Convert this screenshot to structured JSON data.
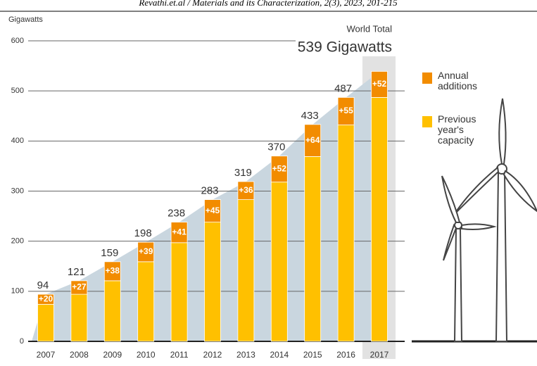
{
  "chart_data": {
    "type": "stacked_bar",
    "source": "Revathi.et.al / Materials and its Characterization, 2(3), 2023, 201-215",
    "y_label": "Gigawatts",
    "annotation": {
      "title": "World Total",
      "text": "539 Gigawatts"
    },
    "categories": [
      "2007",
      "2008",
      "2009",
      "2010",
      "2011",
      "2012",
      "2013",
      "2014",
      "2015",
      "2016",
      "2017"
    ],
    "series": [
      {
        "name": "Previous year's capacity",
        "color": "#ffc000",
        "values": [
          74,
          94,
          121,
          159,
          197,
          238,
          283,
          318,
          369,
          432,
          487
        ]
      },
      {
        "name": "Annual additions",
        "color": "#f28c00",
        "values": [
          20,
          27,
          38,
          39,
          41,
          45,
          36,
          52,
          64,
          55,
          52
        ],
        "value_labels": [
          "+20",
          "+27",
          "+38",
          "+39",
          "+41",
          "+45",
          "+36",
          "+52",
          "+64",
          "+55",
          "+52"
        ]
      }
    ],
    "totals": [
      94,
      121,
      159,
      198,
      238,
      283,
      319,
      370,
      433,
      487,
      null
    ],
    "ylim": [
      0,
      600
    ],
    "yticks": [
      0,
      100,
      200,
      300,
      400,
      500,
      600
    ],
    "grid": true
  }
}
